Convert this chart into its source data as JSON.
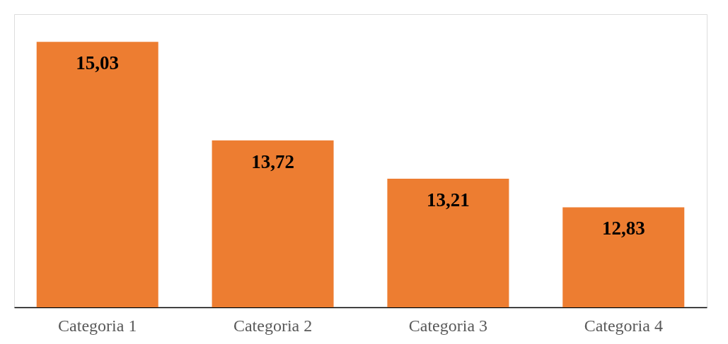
{
  "chart_data": {
    "type": "bar",
    "categories": [
      "Categoria 1",
      "Categoria 2",
      "Categoria 3",
      "Categoria 4"
    ],
    "values": [
      15.03,
      13.72,
      13.21,
      12.83
    ],
    "value_labels": [
      "15,03",
      "13,72",
      "13,21",
      "12,83"
    ],
    "color": "#ed7d31",
    "ylim": [
      11.5,
      15.4
    ],
    "tick_labels": "x",
    "grid": false
  }
}
